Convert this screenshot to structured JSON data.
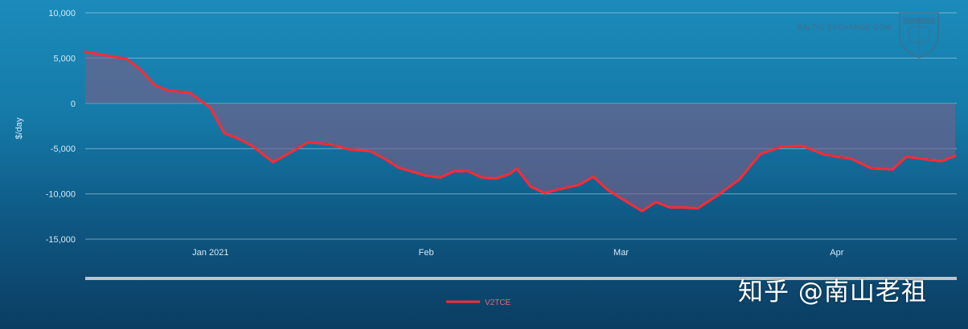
{
  "chart_data": {
    "type": "area",
    "ylabel": "$/day",
    "ylim": [
      -15000,
      10000
    ],
    "y_ticks": [
      10000,
      5000,
      0,
      -5000,
      -10000,
      -15000
    ],
    "y_tick_labels": [
      "10,000",
      "5,000",
      "0",
      "-5,000",
      "-10,000",
      "-15,000"
    ],
    "x_tick_labels": [
      "Jan 2021",
      "Feb",
      "Mar",
      "Apr"
    ],
    "x_tick_dates": [
      "2021-01-01",
      "2021-02-01",
      "2021-03-01",
      "2021-04-01"
    ],
    "x_range": [
      "2020-12-14",
      "2021-04-18"
    ],
    "grid": true,
    "legend": "bottom-center",
    "series": [
      {
        "name": "V2TCE",
        "color": "#ff2a35",
        "x": [
          "2020-12-14",
          "2020-12-17",
          "2020-12-20",
          "2020-12-22",
          "2020-12-24",
          "2020-12-26",
          "2020-12-29",
          "2021-01-01",
          "2021-01-03",
          "2021-01-05",
          "2021-01-07",
          "2021-01-10",
          "2021-01-13",
          "2021-01-15",
          "2021-01-18",
          "2021-01-21",
          "2021-01-23",
          "2021-01-24",
          "2021-01-26",
          "2021-01-28",
          "2021-02-01",
          "2021-02-03",
          "2021-02-05",
          "2021-02-07",
          "2021-02-09",
          "2021-02-11",
          "2021-02-13",
          "2021-02-14",
          "2021-02-16",
          "2021-02-18",
          "2021-02-20",
          "2021-02-23",
          "2021-02-25",
          "2021-02-27",
          "2021-03-01",
          "2021-03-04",
          "2021-03-06",
          "2021-03-08",
          "2021-03-10",
          "2021-03-12",
          "2021-03-15",
          "2021-03-18",
          "2021-03-21",
          "2021-03-24",
          "2021-03-27",
          "2021-03-30",
          "2021-04-01",
          "2021-04-03",
          "2021-04-06",
          "2021-04-09",
          "2021-04-11",
          "2021-04-14",
          "2021-04-16",
          "2021-04-18"
        ],
        "y": [
          5700,
          5300,
          4900,
          3700,
          2000,
          1400,
          1200,
          -500,
          -3300,
          -3900,
          -4700,
          -6500,
          -5200,
          -4300,
          -4500,
          -5100,
          -5200,
          -5300,
          -6100,
          -7100,
          -8000,
          -8200,
          -7500,
          -7500,
          -8200,
          -8300,
          -7800,
          -7200,
          -9200,
          -9900,
          -9500,
          -9000,
          -8100,
          -9500,
          -10500,
          -11900,
          -10900,
          -11500,
          -11500,
          -11600,
          -10100,
          -8400,
          -5600,
          -4800,
          -4700,
          -5600,
          -5900,
          -6100,
          -7200,
          -7300,
          -5900,
          -6200,
          -6400,
          -5800
        ]
      }
    ]
  },
  "source_text": "BALTIC EXCHANGE.COM",
  "watermark": "知乎 @南山老祖",
  "logo_icon": "baltic-exchange-shield-icon"
}
